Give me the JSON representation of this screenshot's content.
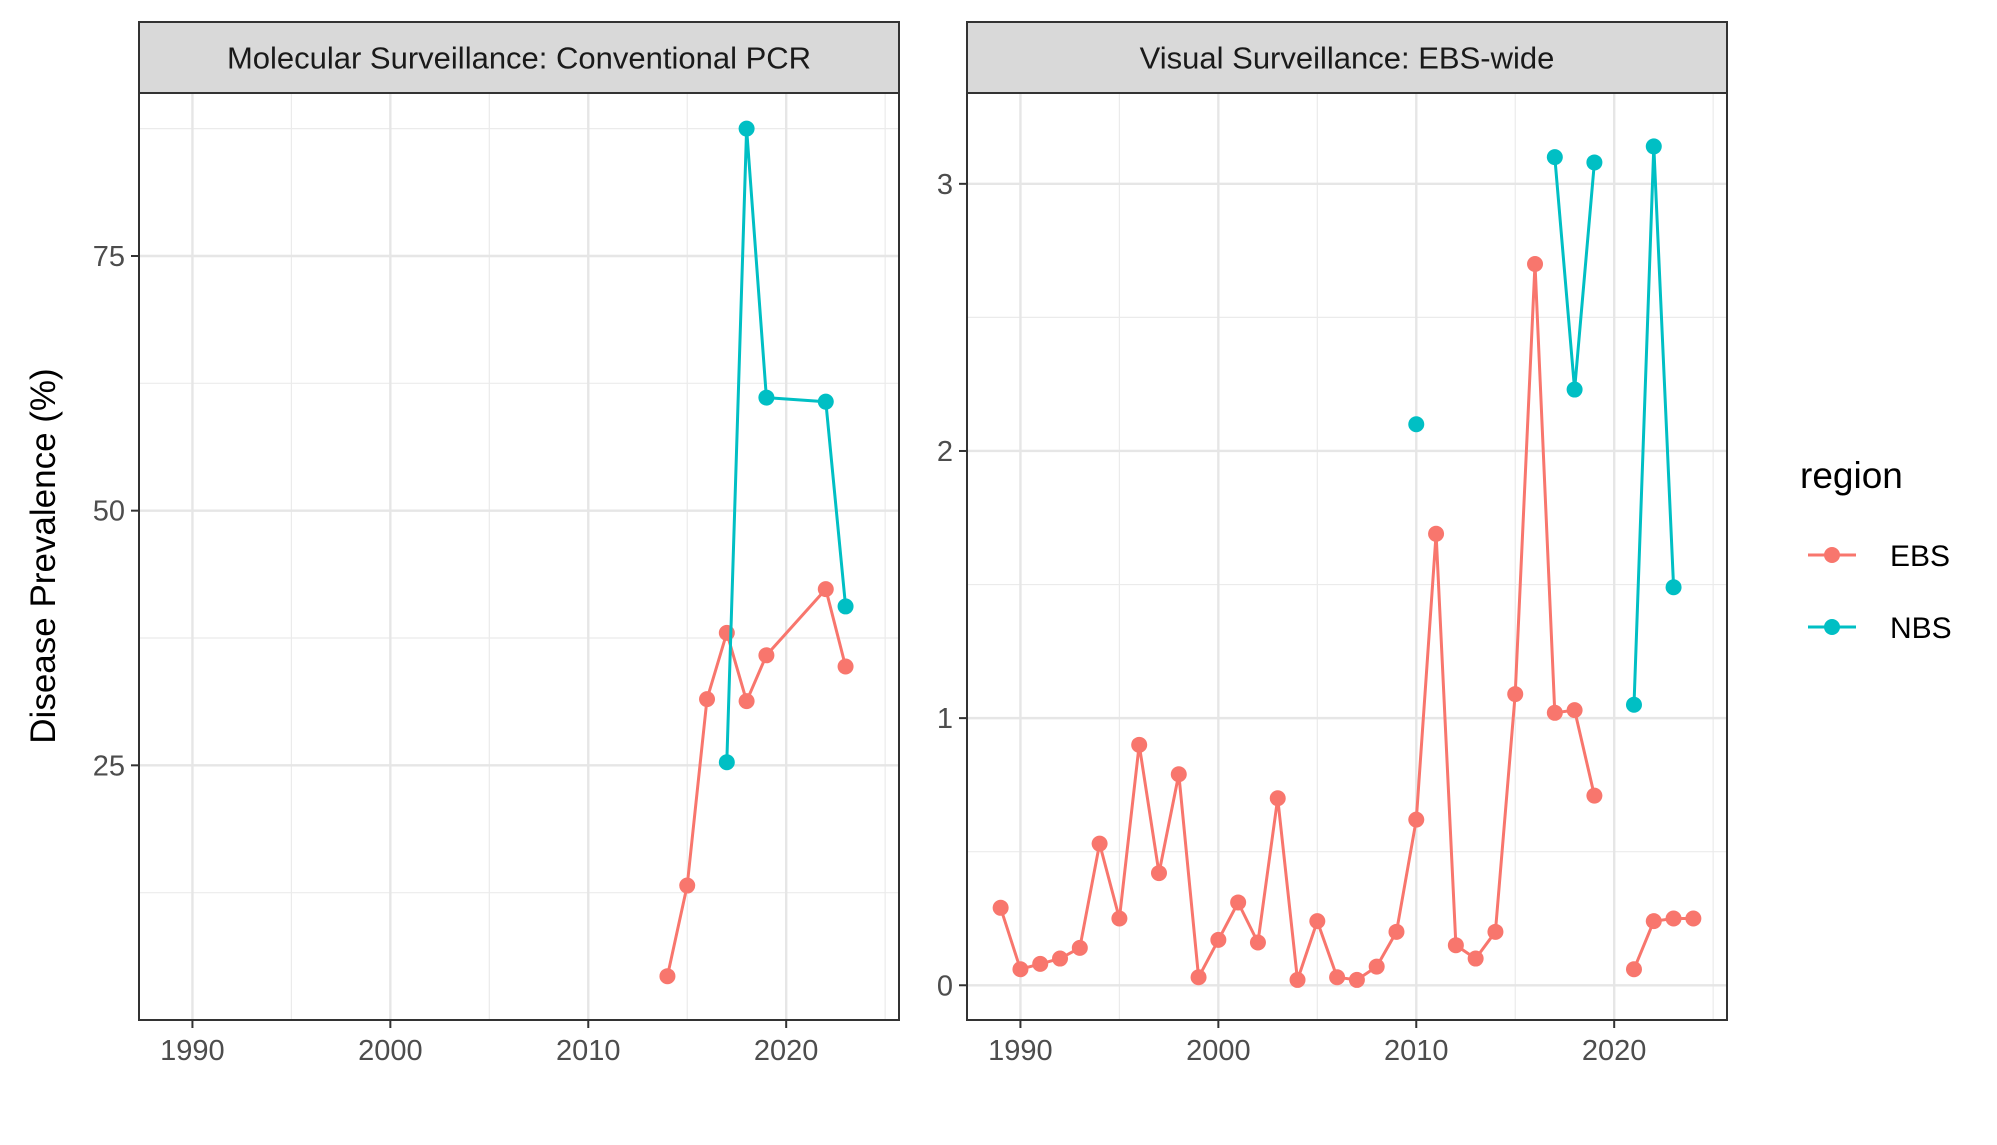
{
  "chart_data": {
    "type": "line",
    "ylabel": "Disease Prevalence (%)",
    "xlabel": "",
    "legend": {
      "title": "region",
      "placement": "right",
      "entries": [
        {
          "name": "EBS",
          "color": "#F8766D"
        },
        {
          "name": "NBS",
          "color": "#00BFC4"
        }
      ]
    },
    "grid": true,
    "panels": [
      {
        "title": "Molecular Surveillance: Conventional PCR",
        "xlim": [
          1987.3,
          2025.7
        ],
        "ylim": [
          0,
          91
        ],
        "xticks": [
          1990,
          2000,
          2010,
          2020
        ],
        "yticks": [
          25,
          50,
          75
        ],
        "series": [
          {
            "name": "EBS",
            "color": "#F8766D",
            "segments": [
              [
                [
                  2014,
                  4.3
                ],
                [
                  2015,
                  13.2
                ],
                [
                  2016,
                  31.5
                ],
                [
                  2017,
                  38.0
                ],
                [
                  2018,
                  31.3
                ],
                [
                  2019,
                  35.8
                ],
                [
                  2022,
                  42.3
                ],
                [
                  2023,
                  34.7
                ]
              ]
            ]
          },
          {
            "name": "NBS",
            "color": "#00BFC4",
            "segments": [
              [
                [
                  2017,
                  25.3
                ],
                [
                  2018,
                  87.5
                ],
                [
                  2019,
                  61.1
                ],
                [
                  2022,
                  60.7
                ],
                [
                  2023,
                  40.6
                ]
              ]
            ]
          }
        ]
      },
      {
        "title": "Visual Surveillance: EBS-wide",
        "xlim": [
          1987.3,
          2025.7
        ],
        "ylim": [
          -0.13,
          3.34
        ],
        "xticks": [
          1990,
          2000,
          2010,
          2020
        ],
        "yticks": [
          0,
          1,
          2,
          3
        ],
        "series": [
          {
            "name": "EBS",
            "color": "#F8766D",
            "segments": [
              [
                [
                  1989,
                  0.29
                ],
                [
                  1990,
                  0.06
                ],
                [
                  1991,
                  0.08
                ],
                [
                  1992,
                  0.1
                ],
                [
                  1993,
                  0.14
                ],
                [
                  1994,
                  0.53
                ],
                [
                  1995,
                  0.25
                ],
                [
                  1996,
                  0.9
                ],
                [
                  1997,
                  0.42
                ],
                [
                  1998,
                  0.79
                ],
                [
                  1999,
                  0.03
                ],
                [
                  2000,
                  0.17
                ],
                [
                  2001,
                  0.31
                ],
                [
                  2002,
                  0.16
                ],
                [
                  2003,
                  0.7
                ],
                [
                  2004,
                  0.02
                ],
                [
                  2005,
                  0.24
                ],
                [
                  2006,
                  0.03
                ],
                [
                  2007,
                  0.02
                ],
                [
                  2008,
                  0.07
                ],
                [
                  2009,
                  0.2
                ],
                [
                  2010,
                  0.62
                ],
                [
                  2011,
                  1.69
                ],
                [
                  2012,
                  0.15
                ],
                [
                  2013,
                  0.1
                ],
                [
                  2014,
                  0.2
                ],
                [
                  2015,
                  1.09
                ],
                [
                  2016,
                  2.7
                ],
                [
                  2017,
                  1.02
                ],
                [
                  2018,
                  1.03
                ],
                [
                  2019,
                  0.71
                ]
              ],
              [
                [
                  2021,
                  0.06
                ],
                [
                  2022,
                  0.24
                ],
                [
                  2023,
                  0.25
                ],
                [
                  2024,
                  0.25
                ]
              ]
            ]
          },
          {
            "name": "NBS",
            "color": "#00BFC4",
            "segments": [
              [
                [
                  2010,
                  2.1
                ]
              ],
              [
                [
                  2017,
                  3.1
                ],
                [
                  2018,
                  2.23
                ],
                [
                  2019,
                  3.08
                ]
              ],
              [
                [
                  2021,
                  1.05
                ],
                [
                  2022,
                  3.14
                ],
                [
                  2023,
                  1.49
                ]
              ]
            ]
          }
        ]
      }
    ]
  }
}
